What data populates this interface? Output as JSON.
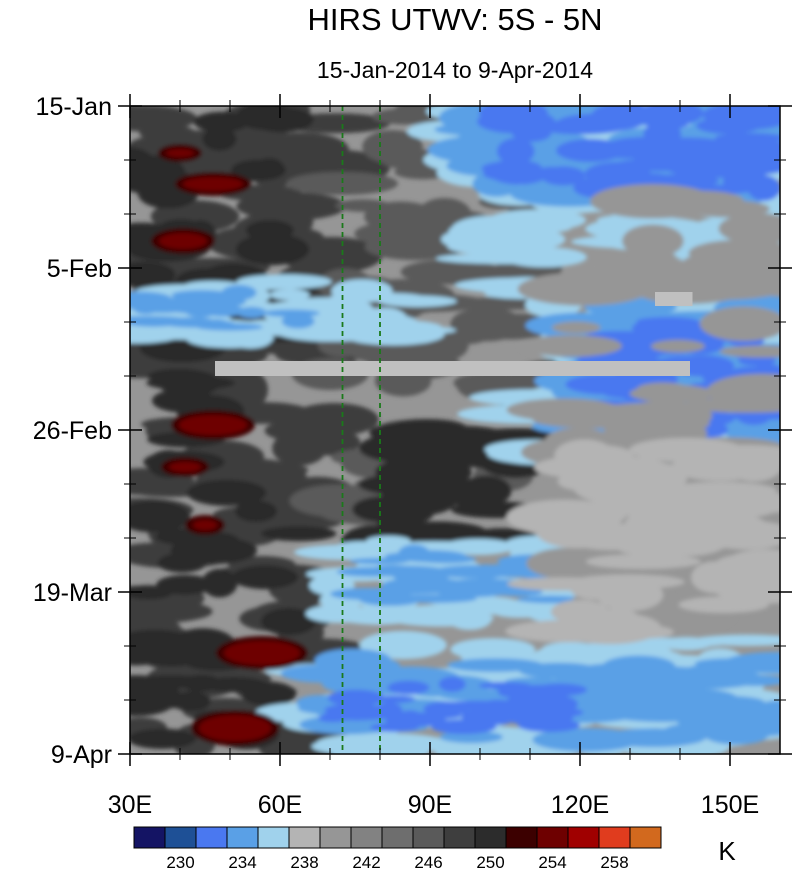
{
  "chart_data": {
    "type": "heatmap",
    "title": "HIRS UTWV: 5S - 5N",
    "subtitle": "15-Jan-2014 to 9-Apr-2014",
    "x_axis": {
      "range": [
        30,
        160
      ],
      "ticks": [
        {
          "value": 30,
          "label": "30E"
        },
        {
          "value": 60,
          "label": "60E"
        },
        {
          "value": 90,
          "label": "90E"
        },
        {
          "value": 120,
          "label": "120E"
        },
        {
          "value": 150,
          "label": "150E"
        }
      ]
    },
    "y_axis": {
      "range": [
        "15-Jan-2014",
        "9-Apr-2014"
      ],
      "ticks": [
        {
          "value": "2014-01-15",
          "label": "15-Jan"
        },
        {
          "value": "2014-02-05",
          "label": "5-Feb"
        },
        {
          "value": "2014-02-26",
          "label": "26-Feb"
        },
        {
          "value": "2014-03-19",
          "label": "19-Mar"
        },
        {
          "value": "2014-04-09",
          "label": "9-Apr"
        }
      ]
    },
    "reference_lines": [
      {
        "axis": "x",
        "value": 72.5,
        "color": "#1a7a1a",
        "style": "dashed"
      },
      {
        "axis": "x",
        "value": 80,
        "color": "#1a7a1a",
        "style": "dashed"
      }
    ],
    "colorbar": {
      "unit": "K",
      "levels": [
        228,
        230,
        232,
        234,
        236,
        238,
        240,
        242,
        244,
        246,
        248,
        250,
        252,
        254,
        256,
        258,
        260
      ],
      "labels": [
        "230",
        "234",
        "238",
        "242",
        "246",
        "250",
        "254",
        "258"
      ],
      "colors": [
        "#141464",
        "#1e5096",
        "#4a78f0",
        "#5aa0e6",
        "#a0d2ec",
        "#b4b4b4",
        "#969696",
        "#828282",
        "#6e6e6e",
        "#5a5a5a",
        "#3e3e3e",
        "#2c2c2c",
        "#3c0000",
        "#6e0000",
        "#a00000",
        "#e03c1e",
        "#d2691e"
      ]
    },
    "missing_color": "#c0c0c0"
  }
}
